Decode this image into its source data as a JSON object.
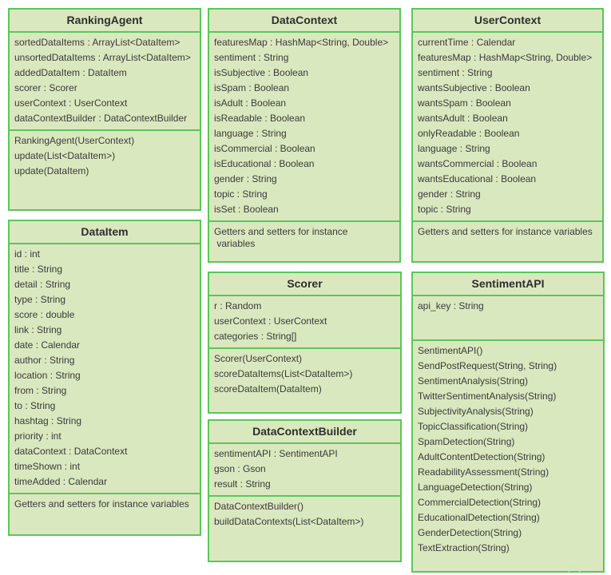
{
  "classes": [
    {
      "name": "RankingAgent",
      "attributes": [
        "sortedDataItems : ArrayList<DataItem>",
        "unsortedDataItems : ArrayList<DataItem>",
        "addedDataItem : DataItem",
        "scorer : Scorer",
        "userContext : UserContext",
        "dataContextBuilder : DataContextBuilder"
      ],
      "operations": [
        "RankingAgent(UserContext)",
        "update(List<DataItem>)",
        "update(DataItem)"
      ]
    },
    {
      "name": "DataContext",
      "attributes": [
        "featuresMap : HashMap<String, Double>",
        "sentiment : String",
        "isSubjective : Boolean",
        "isSpam : Boolean",
        "isAdult : Boolean",
        "isReadable : Boolean",
        "language : String",
        "isCommercial : Boolean",
        "isEducational : Boolean",
        "gender : String",
        "topic : String",
        "isSet : Boolean"
      ],
      "note": "Getters and setters for instance\n variables"
    },
    {
      "name": "UserContext",
      "attributes": [
        "currentTime : Calendar",
        "featuresMap : HashMap<String, Double>",
        "sentiment : String",
        "wantsSubjective : Boolean",
        "wantsSpam : Boolean",
        "wantsAdult : Boolean",
        "onlyReadable : Boolean",
        "language : String",
        "wantsCommercial : Boolean",
        "wantsEducational : Boolean",
        "gender : String",
        "topic : String"
      ],
      "note": "Getters and setters for instance variables"
    },
    {
      "name": "DataItem",
      "attributes": [
        "id  : int",
        "title : String",
        "detail : String",
        "type : String",
        "score : double",
        "link : String",
        "date : Calendar",
        "author : String",
        "location : String",
        "from : String",
        "to : String",
        "hashtag : String",
        "priority : int",
        "dataContext : DataContext",
        "timeShown : int",
        "timeAdded : Calendar"
      ],
      "note": "Getters and setters for instance variables"
    },
    {
      "name": "Scorer",
      "attributes": [
        "r : Random",
        "userContext : UserContext",
        "categories : String[]"
      ],
      "operations": [
        "Scorer(UserContext)",
        "scoreDataItems(List<DataItem>)",
        "scoreDataItem(DataItem)"
      ]
    },
    {
      "name": "SentimentAPI",
      "attributes": [
        "api_key : String"
      ],
      "operations": [
        "SentimentAPI()",
        "SendPostRequest(String, String)",
        "SentimentAnalysis(String)",
        "TwitterSentimentAnalysis(String)",
        "SubjectivityAnalysis(String)",
        "TopicClassification(String)",
        "SpamDetection(String)",
        "AdultContentDetection(String)",
        "ReadabilityAssessment(String)",
        "LanguageDetection(String)",
        "CommercialDetection(String)",
        "EducationalDetection(String)",
        "GenderDetection(String)",
        "TextExtraction(String)"
      ]
    },
    {
      "name": "DataContextBuilder",
      "attributes": [
        "sentimentAPI : SentimentAPI",
        "gson : Gson",
        "result : String"
      ],
      "operations": [
        "DataContextBuilder()",
        "buildDataContexts(List<DataItem>)"
      ]
    }
  ]
}
